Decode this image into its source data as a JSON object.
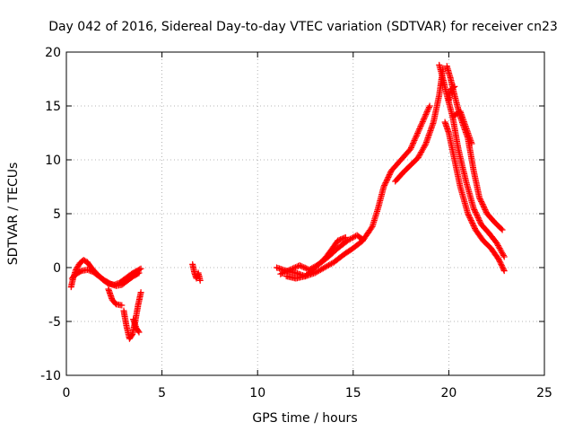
{
  "chart_data": {
    "type": "scatter",
    "title": "Day 042 of 2016, Sidereal Day-to-day VTEC variation (SDTVAR) for receiver cn23",
    "xlabel": "GPS time / hours",
    "ylabel": "SDTVAR / TECUs",
    "xlim": [
      0,
      25
    ],
    "ylim": [
      -10,
      20
    ],
    "xticks": [
      "0",
      "5",
      "10",
      "15",
      "20",
      "25"
    ],
    "yticks": [
      "-10",
      "-5",
      "0",
      "5",
      "10",
      "15",
      "20"
    ],
    "grid": true,
    "marker": "plus",
    "series": [
      {
        "name": "SDTVAR",
        "color": "#ff0000",
        "tracks": [
          [
            [
              0.25,
              -1.8
            ],
            [
              0.35,
              -1.0
            ],
            [
              0.5,
              -0.2
            ],
            [
              0.7,
              0.4
            ],
            [
              0.9,
              0.7
            ],
            [
              1.1,
              0.5
            ],
            [
              1.3,
              0.0
            ],
            [
              1.6,
              -0.6
            ],
            [
              1.9,
              -1.1
            ],
            [
              2.2,
              -1.5
            ],
            [
              2.5,
              -1.6
            ],
            [
              2.8,
              -1.4
            ],
            [
              3.1,
              -1.0
            ],
            [
              3.4,
              -0.6
            ],
            [
              3.7,
              -0.3
            ],
            [
              3.9,
              -0.1
            ]
          ],
          [
            [
              0.3,
              -1.0
            ],
            [
              0.5,
              -0.6
            ],
            [
              0.8,
              -0.3
            ],
            [
              1.1,
              -0.2
            ],
            [
              1.4,
              -0.4
            ],
            [
              1.7,
              -0.8
            ],
            [
              2.0,
              -1.2
            ],
            [
              2.3,
              -1.5
            ],
            [
              2.6,
              -1.7
            ],
            [
              2.9,
              -1.6
            ],
            [
              3.2,
              -1.2
            ],
            [
              3.5,
              -0.8
            ],
            [
              3.8,
              -0.5
            ]
          ],
          [
            [
              2.2,
              -2.0
            ],
            [
              2.4,
              -3.0
            ],
            [
              2.6,
              -3.4
            ],
            [
              2.9,
              -3.5
            ]
          ],
          [
            [
              3.0,
              -4.0
            ],
            [
              3.15,
              -5.5
            ],
            [
              3.3,
              -6.6
            ],
            [
              3.45,
              -6.2
            ],
            [
              3.6,
              -5.0
            ],
            [
              3.75,
              -3.5
            ],
            [
              3.9,
              -2.3
            ]
          ],
          [
            [
              3.5,
              -4.8
            ],
            [
              3.65,
              -5.6
            ],
            [
              3.8,
              -6.0
            ]
          ],
          [
            [
              6.6,
              0.3
            ],
            [
              6.7,
              -0.5
            ],
            [
              6.8,
              -1.0
            ],
            [
              6.9,
              -0.5
            ],
            [
              7.0,
              -1.2
            ]
          ],
          [
            [
              11.0,
              0.0
            ],
            [
              11.5,
              -0.3
            ],
            [
              12.0,
              -0.5
            ],
            [
              12.5,
              -0.8
            ],
            [
              13.0,
              -0.5
            ],
            [
              13.5,
              0.0
            ],
            [
              14.0,
              0.5
            ],
            [
              14.5,
              1.2
            ],
            [
              15.0,
              1.8
            ],
            [
              15.5,
              2.5
            ],
            [
              16.0,
              3.8
            ],
            [
              16.3,
              5.5
            ],
            [
              16.6,
              7.5
            ],
            [
              17.0,
              9.0
            ],
            [
              17.5,
              10.0
            ],
            [
              18.0,
              11.0
            ],
            [
              18.5,
              13.0
            ],
            [
              19.0,
              15.0
            ]
          ],
          [
            [
              11.2,
              -0.6
            ],
            [
              11.7,
              -0.2
            ],
            [
              12.2,
              0.2
            ],
            [
              12.7,
              -0.2
            ],
            [
              13.2,
              0.3
            ],
            [
              13.7,
              1.0
            ],
            [
              14.2,
              1.8
            ],
            [
              14.7,
              2.5
            ],
            [
              15.2,
              3.0
            ],
            [
              15.5,
              2.6
            ]
          ],
          [
            [
              11.5,
              -0.8
            ],
            [
              12.0,
              -1.0
            ],
            [
              12.5,
              -0.8
            ],
            [
              13.0,
              0.0
            ],
            [
              13.5,
              0.8
            ],
            [
              13.8,
              1.5
            ],
            [
              14.2,
              2.5
            ],
            [
              14.6,
              2.8
            ]
          ],
          [
            [
              17.2,
              8.0
            ],
            [
              17.6,
              8.8
            ],
            [
              18.0,
              9.5
            ],
            [
              18.4,
              10.2
            ],
            [
              18.8,
              11.5
            ],
            [
              19.2,
              13.5
            ],
            [
              19.5,
              16.0
            ],
            [
              19.7,
              18.5
            ]
          ],
          [
            [
              19.5,
              18.8
            ],
            [
              19.7,
              17.5
            ],
            [
              19.9,
              16.0
            ],
            [
              20.2,
              14.0
            ],
            [
              20.5,
              11.0
            ],
            [
              20.9,
              8.0
            ],
            [
              21.3,
              5.5
            ],
            [
              21.7,
              4.0
            ],
            [
              22.1,
              3.2
            ],
            [
              22.5,
              2.3
            ],
            [
              22.9,
              1.0
            ]
          ],
          [
            [
              19.9,
              18.7
            ],
            [
              20.1,
              17.5
            ],
            [
              20.3,
              16.0
            ],
            [
              20.6,
              14.0
            ],
            [
              21.0,
              12.0
            ],
            [
              21.3,
              9.0
            ],
            [
              21.6,
              6.5
            ],
            [
              22.0,
              5.0
            ],
            [
              22.4,
              4.2
            ],
            [
              22.8,
              3.5
            ]
          ],
          [
            [
              19.8,
              13.5
            ],
            [
              20.0,
              12.5
            ],
            [
              20.3,
              10.0
            ],
            [
              20.6,
              7.5
            ],
            [
              21.0,
              5.0
            ],
            [
              21.4,
              3.5
            ],
            [
              21.8,
              2.5
            ],
            [
              22.2,
              1.8
            ],
            [
              22.6,
              0.8
            ],
            [
              22.9,
              -0.3
            ]
          ],
          [
            [
              20.2,
              14.0
            ],
            [
              20.6,
              14.5
            ],
            [
              20.9,
              13.0
            ],
            [
              21.2,
              11.5
            ]
          ],
          [
            [
              20.0,
              15.5
            ],
            [
              20.1,
              16.5
            ],
            [
              20.3,
              16.8
            ]
          ]
        ]
      }
    ]
  }
}
